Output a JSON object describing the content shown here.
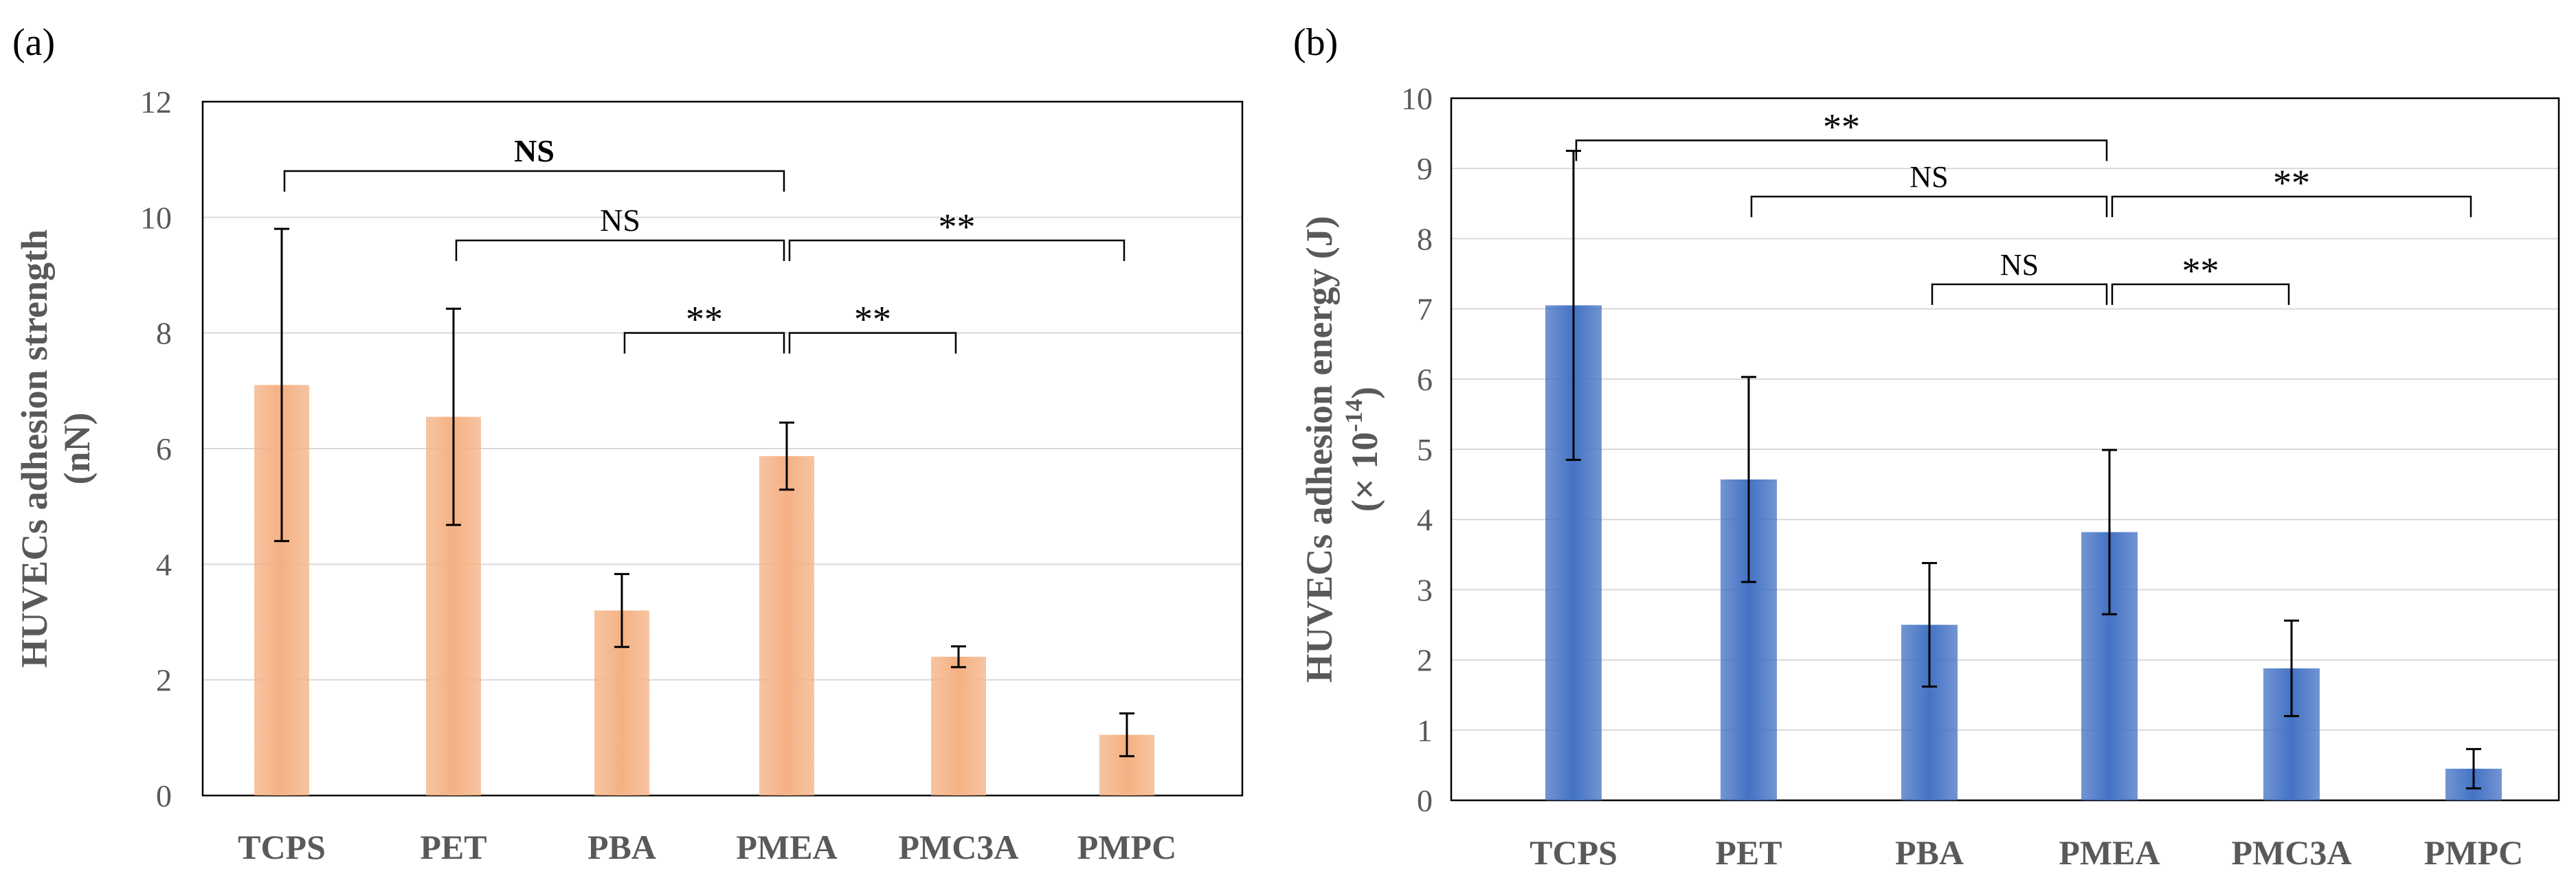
{
  "chart_data": [
    {
      "type": "bar",
      "panel_label": "(a)",
      "ylabel_line1": "HUVECs adhesion strength",
      "ylabel_line2": "(nN)",
      "categories": [
        "TCPS",
        "PET",
        "PBA",
        "PMEA",
        "PMC3A",
        "PMPC"
      ],
      "values": [
        7.1,
        6.55,
        3.2,
        5.87,
        2.4,
        1.05
      ],
      "errors": [
        2.7,
        1.87,
        0.63,
        0.58,
        0.18,
        0.37
      ],
      "ylim": [
        0,
        12
      ],
      "yticks": [
        "0",
        "2",
        "4",
        "6",
        "8",
        "10",
        "12"
      ],
      "grid": true,
      "bar_color": "#f4b183",
      "significance": [
        {
          "from": "TCPS",
          "to": "PMEA",
          "label": "NS",
          "y": 10.8,
          "bold": true
        },
        {
          "from": "PET",
          "to": "PMEA",
          "label": "NS",
          "y": 9.6,
          "bold": false
        },
        {
          "from": "PMEA",
          "to": "PMPC",
          "label": "**",
          "y": 9.6,
          "bold": false
        },
        {
          "from": "PBA",
          "to": "PMEA",
          "label": "**",
          "y": 8.0,
          "bold": false
        },
        {
          "from": "PMEA",
          "to": "PMC3A",
          "label": "**",
          "y": 8.0,
          "bold": false
        }
      ]
    },
    {
      "type": "bar",
      "panel_label": "(b)",
      "ylabel_line1": "HUVECs adhesion energy (J)",
      "ylabel_line2_prefix": "(× 10",
      "ylabel_line2_exp": "-14",
      "ylabel_line2_suffix": ")",
      "categories": [
        "TCPS",
        "PET",
        "PBA",
        "PMEA",
        "PMC3A",
        "PMPC"
      ],
      "values": [
        7.05,
        4.57,
        2.5,
        3.82,
        1.88,
        0.45
      ],
      "errors": [
        2.2,
        1.46,
        0.88,
        1.17,
        0.68,
        0.28
      ],
      "ylim": [
        0,
        10
      ],
      "yticks": [
        "0",
        "1",
        "2",
        "3",
        "4",
        "5",
        "6",
        "7",
        "8",
        "9",
        "10"
      ],
      "grid": true,
      "bar_color": "#4472c4",
      "significance": [
        {
          "from": "TCPS",
          "to": "PMEA",
          "label": "**",
          "y": 9.4,
          "bold": false
        },
        {
          "from": "PET",
          "to": "PMEA",
          "label": "NS",
          "y": 8.6,
          "bold": false
        },
        {
          "from": "PMEA",
          "to": "PMPC",
          "label": "**",
          "y": 8.6,
          "bold": false
        },
        {
          "from": "PBA",
          "to": "PMEA",
          "label": "NS",
          "y": 7.35,
          "bold": false
        },
        {
          "from": "PMEA",
          "to": "PMC3A",
          "label": "**",
          "y": 7.35,
          "bold": false
        }
      ]
    }
  ]
}
